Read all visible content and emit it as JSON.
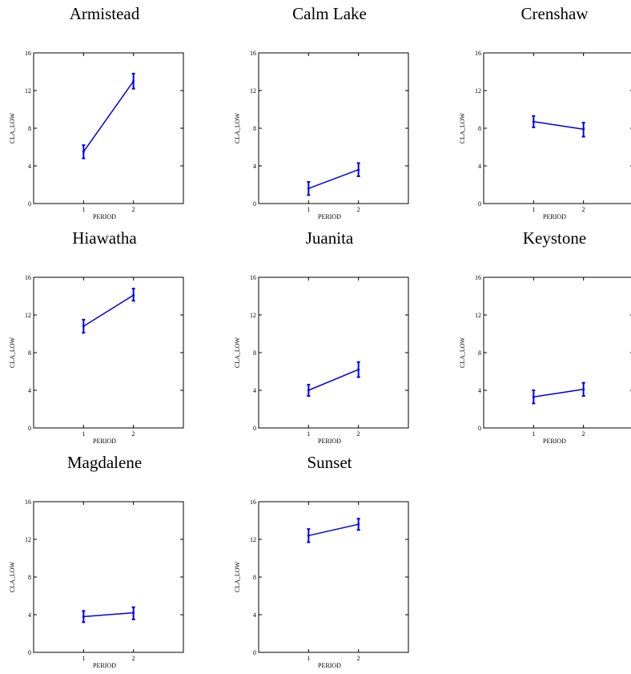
{
  "chart_data": [
    {
      "type": "line",
      "title": "Armistead",
      "xlabel": "PERIOD",
      "ylabel": "CLA_LOW",
      "x": [
        1,
        2
      ],
      "xticks": [
        "1",
        "2"
      ],
      "xlim": [
        0,
        3
      ],
      "ylim": [
        0,
        16
      ],
      "yticks": [
        "0",
        "4",
        "8",
        "12",
        "16"
      ],
      "series": [
        {
          "values": [
            5.5,
            13.0
          ],
          "err_low": [
            4.8,
            12.2
          ],
          "err_high": [
            6.2,
            13.8
          ]
        }
      ]
    },
    {
      "type": "line",
      "title": "Calm Lake",
      "xlabel": "PERIOD",
      "ylabel": "CLA_LOW",
      "x": [
        1,
        2
      ],
      "xticks": [
        "1",
        "2"
      ],
      "xlim": [
        0,
        3
      ],
      "ylim": [
        0,
        16
      ],
      "yticks": [
        "0",
        "4",
        "8",
        "12",
        "16"
      ],
      "series": [
        {
          "values": [
            1.6,
            3.6
          ],
          "err_low": [
            0.9,
            2.9
          ],
          "err_high": [
            2.3,
            4.3
          ]
        }
      ]
    },
    {
      "type": "line",
      "title": "Crenshaw",
      "xlabel": "PERIOD",
      "ylabel": "CLA_LOW",
      "x": [
        1,
        2
      ],
      "xticks": [
        "1",
        "2"
      ],
      "xlim": [
        0,
        3
      ],
      "ylim": [
        0,
        16
      ],
      "yticks": [
        "0",
        "4",
        "8",
        "12",
        "16"
      ],
      "series": [
        {
          "values": [
            8.7,
            7.9
          ],
          "err_low": [
            8.1,
            7.1
          ],
          "err_high": [
            9.3,
            8.6
          ]
        }
      ]
    },
    {
      "type": "line",
      "title": "Hiawatha",
      "xlabel": "PERIOD",
      "ylabel": "CLA_LOW",
      "x": [
        1,
        2
      ],
      "xticks": [
        "1",
        "2"
      ],
      "xlim": [
        0,
        3
      ],
      "ylim": [
        0,
        16
      ],
      "yticks": [
        "0",
        "4",
        "8",
        "12",
        "16"
      ],
      "series": [
        {
          "values": [
            10.8,
            14.1
          ],
          "err_low": [
            10.1,
            13.5
          ],
          "err_high": [
            11.5,
            14.8
          ]
        }
      ]
    },
    {
      "type": "line",
      "title": "Juanita",
      "xlabel": "PERIOD",
      "ylabel": "CLA_LOW",
      "x": [
        1,
        2
      ],
      "xticks": [
        "1",
        "2"
      ],
      "xlim": [
        0,
        3
      ],
      "ylim": [
        0,
        16
      ],
      "yticks": [
        "0",
        "4",
        "8",
        "12",
        "16"
      ],
      "series": [
        {
          "values": [
            4.0,
            6.2
          ],
          "err_low": [
            3.4,
            5.4
          ],
          "err_high": [
            4.6,
            7.0
          ]
        }
      ]
    },
    {
      "type": "line",
      "title": "Keystone",
      "xlabel": "PERIOD",
      "ylabel": "CLA_LOW",
      "x": [
        1,
        2
      ],
      "xticks": [
        "1",
        "2"
      ],
      "xlim": [
        0,
        3
      ],
      "ylim": [
        0,
        16
      ],
      "yticks": [
        "0",
        "4",
        "8",
        "12",
        "16"
      ],
      "series": [
        {
          "values": [
            3.3,
            4.1
          ],
          "err_low": [
            2.6,
            3.4
          ],
          "err_high": [
            4.0,
            4.8
          ]
        }
      ]
    },
    {
      "type": "line",
      "title": "Magdalene",
      "xlabel": "PERIOD",
      "ylabel": "CLA_LOW",
      "x": [
        1,
        2
      ],
      "xticks": [
        "1",
        "2"
      ],
      "xlim": [
        0,
        3
      ],
      "ylim": [
        0,
        16
      ],
      "yticks": [
        "0",
        "4",
        "8",
        "12",
        "16"
      ],
      "series": [
        {
          "values": [
            3.8,
            4.2
          ],
          "err_low": [
            3.2,
            3.5
          ],
          "err_high": [
            4.4,
            4.8
          ]
        }
      ]
    },
    {
      "type": "line",
      "title": "Sunset",
      "xlabel": "PERIOD",
      "ylabel": "CLA_LOW",
      "x": [
        1,
        2
      ],
      "xticks": [
        "1",
        "2"
      ],
      "xlim": [
        0,
        3
      ],
      "ylim": [
        0,
        16
      ],
      "yticks": [
        "0",
        "4",
        "8",
        "12",
        "16"
      ],
      "series": [
        {
          "values": [
            12.4,
            13.6
          ],
          "err_low": [
            11.7,
            13.0
          ],
          "err_high": [
            13.1,
            14.2
          ]
        }
      ]
    }
  ]
}
